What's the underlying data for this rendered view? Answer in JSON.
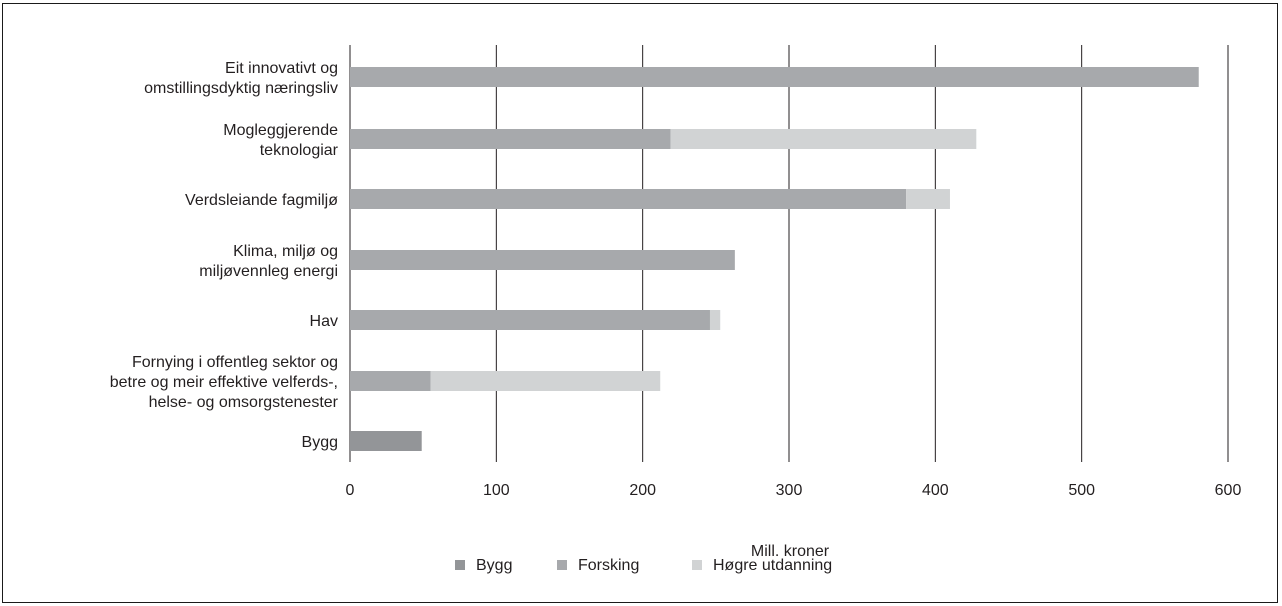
{
  "chart_data": {
    "type": "bar",
    "orientation": "horizontal",
    "stacked": true,
    "categories": [
      [
        "Eit innovativt og",
        "omstillingsdyktig næringsliv"
      ],
      [
        "Mogleggjerende",
        "teknologiar"
      ],
      [
        "Verdsleiande fagmiljø"
      ],
      [
        "Klima, miljø og",
        "miljøvennleg energi"
      ],
      [
        "Hav"
      ],
      [
        "Fornying i offentleg sektor og",
        "betre og meir effektive velferds-,",
        "helse- og omsorgstenester"
      ],
      [
        "Bygg"
      ]
    ],
    "series": [
      {
        "name": "Bygg",
        "color": "#939598",
        "values": [
          0,
          0,
          0,
          0,
          0,
          0,
          49
        ]
      },
      {
        "name": "Forsking",
        "color": "#a7a9ac",
        "values": [
          580,
          219,
          380,
          263,
          246,
          55,
          0
        ]
      },
      {
        "name": "Høgre utdanning",
        "color": "#d1d3d4",
        "values": [
          0,
          209,
          30,
          0,
          7,
          157,
          0
        ]
      }
    ],
    "xlabel": "Mill. kroner",
    "xlim": [
      0,
      600
    ],
    "xticks": [
      0,
      100,
      200,
      300,
      400,
      500,
      600
    ],
    "grid": "vertical",
    "legend_position": "bottom"
  }
}
